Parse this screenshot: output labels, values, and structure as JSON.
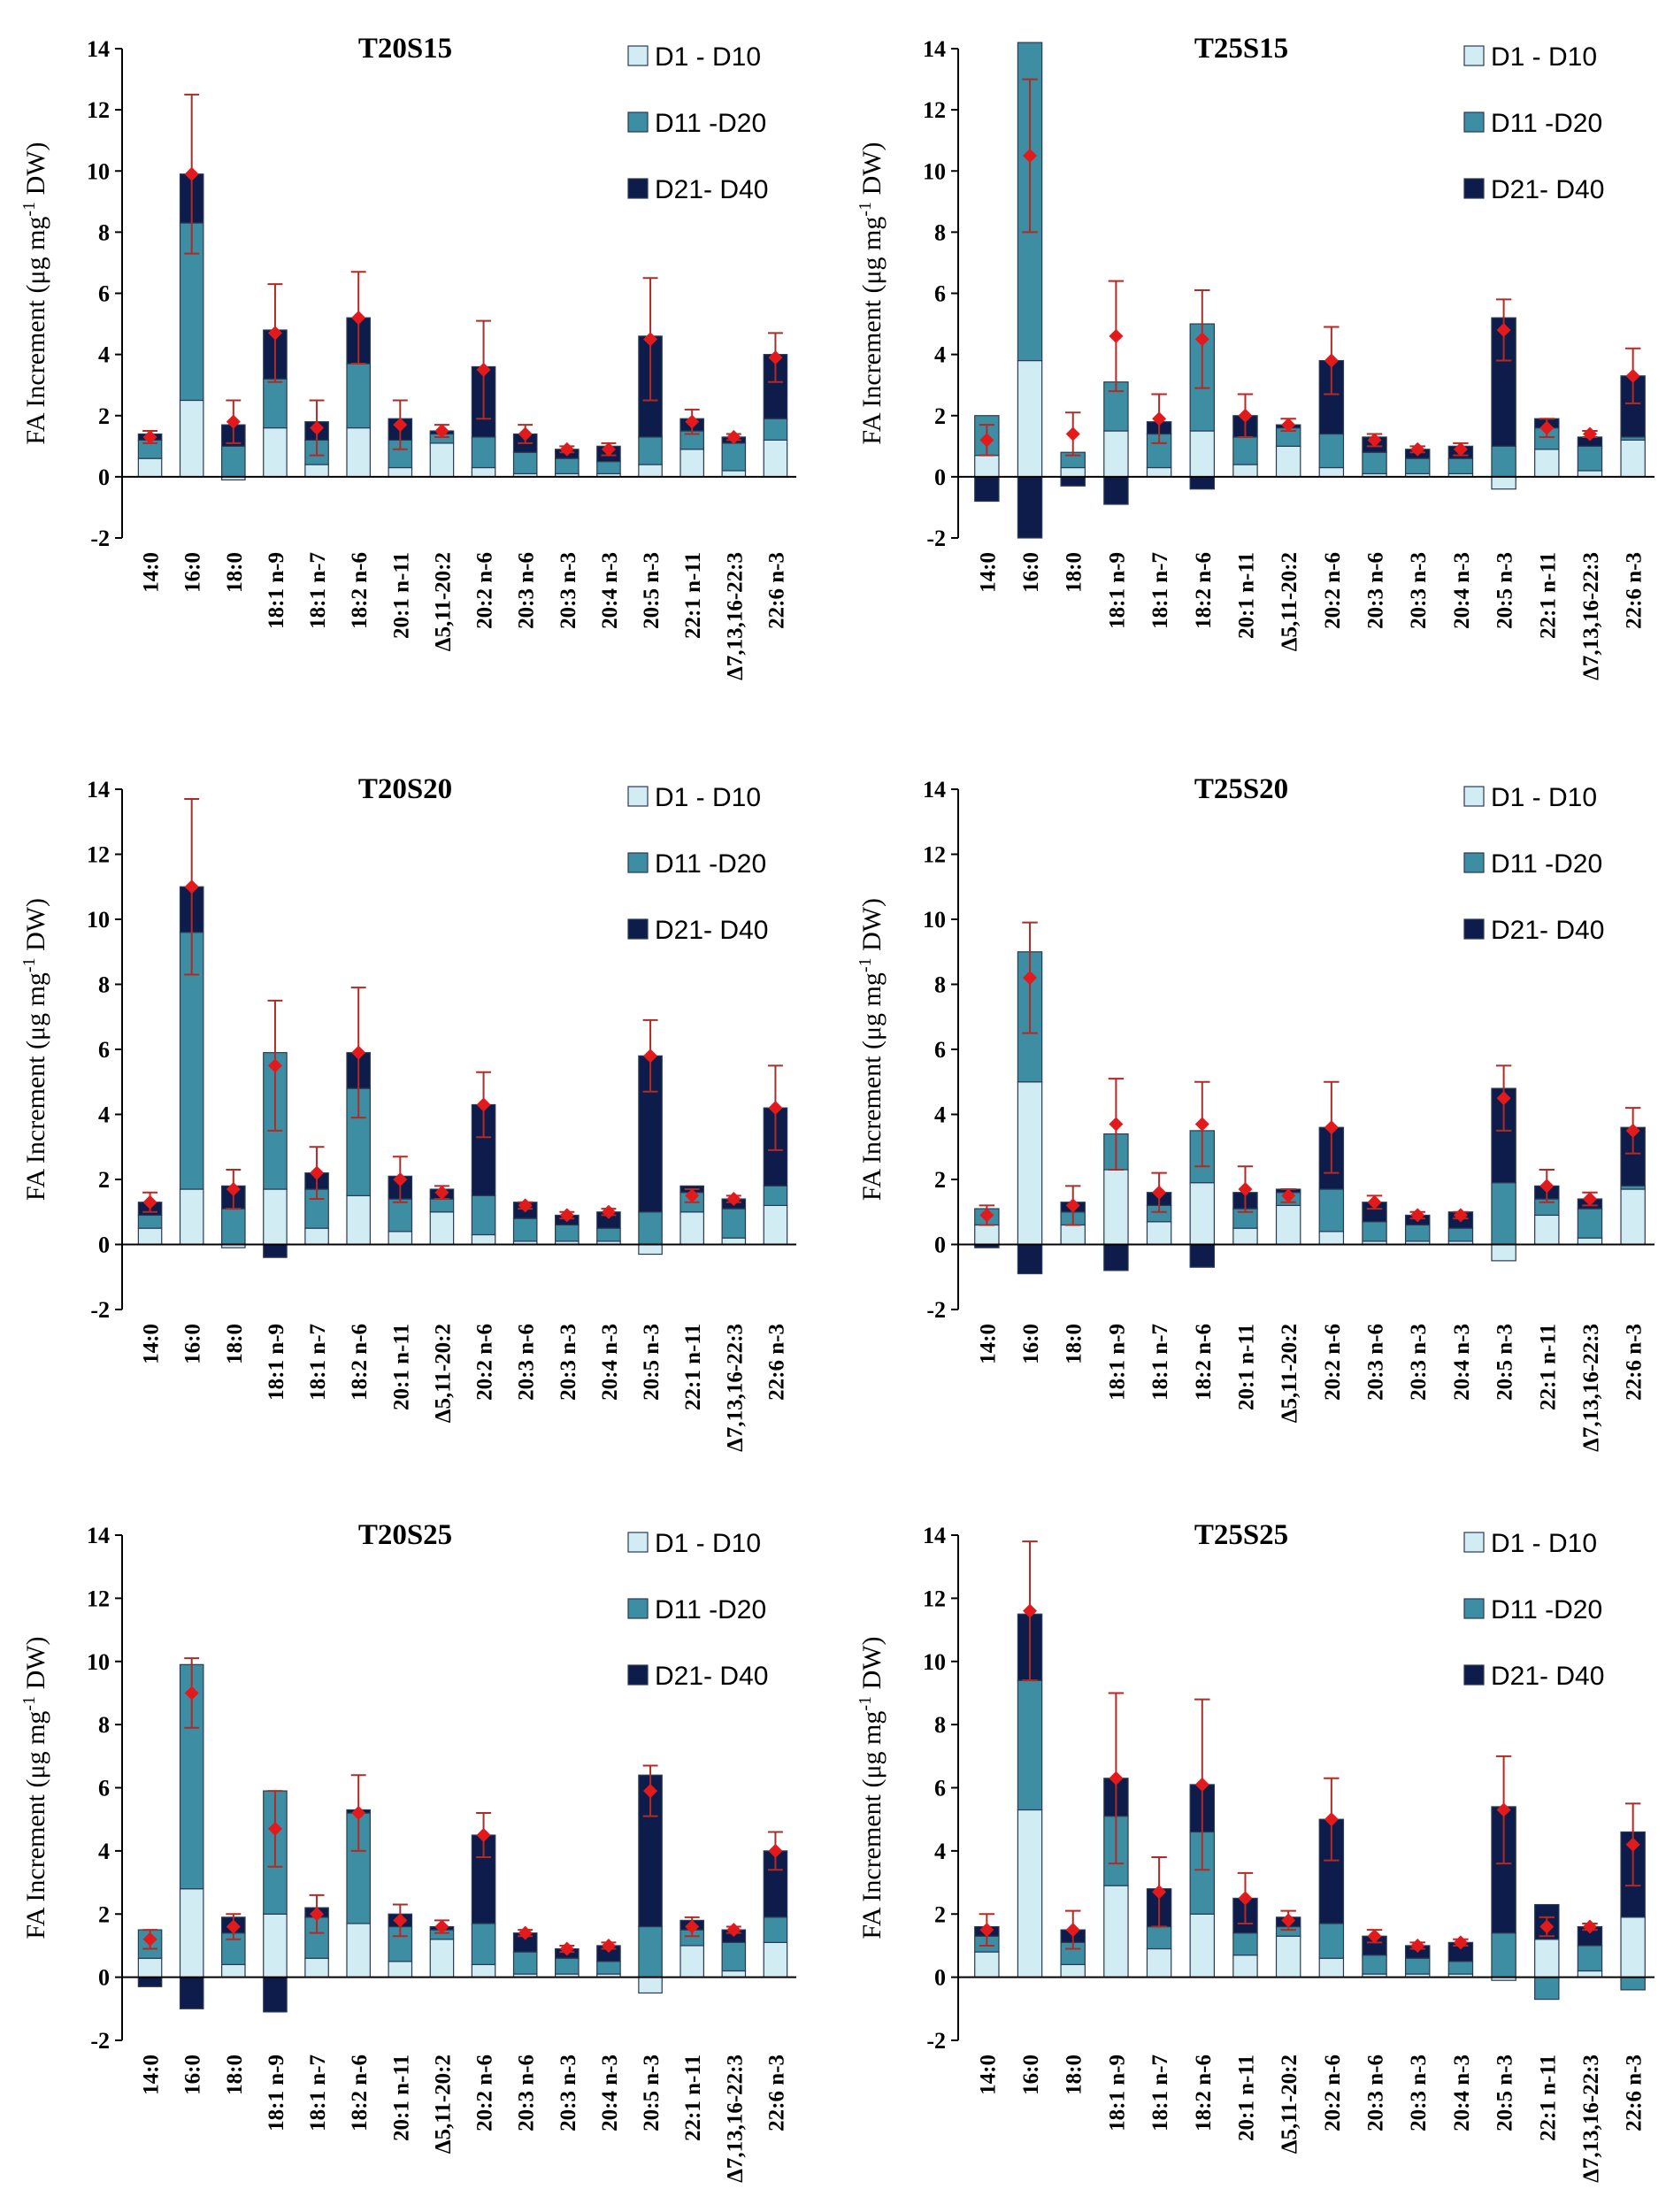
{
  "colors": {
    "d1": "#d2ecf4",
    "d11": "#3d8ea3",
    "d21": "#0d1c4a",
    "bar_stroke": "#2a3a55",
    "error": "#b22a24",
    "mean": "#e31a1c",
    "axis": "#000000"
  },
  "chart_data": [
    {
      "type": "bar",
      "stacked": true,
      "title": "T20S15",
      "ylabel": "FA Increment (μg mg⁻¹ DW)",
      "ylabel_parts": {
        "main": "FA Increment (μg mg",
        "sup": "-1",
        "tail": " DW)"
      },
      "ylim": [
        -2,
        14
      ],
      "yticks": [
        -2,
        0,
        2,
        4,
        6,
        8,
        10,
        12,
        14
      ],
      "categories": [
        "14:0",
        "16:0",
        "18:0",
        "18:1 n-9",
        "18:1 n-7",
        "18:2 n-6",
        "20:1 n-11",
        "Δ5,11-20:2",
        "20:2 n-6",
        "20:3 n-6",
        "20:3 n-3",
        "20:4 n-3",
        "20:5 n-3",
        "22:1 n-11",
        "Δ7,13,16-22:3",
        "22:6 n-3"
      ],
      "legend": [
        "D1 - D10",
        "D11 -D20",
        "D21- D40"
      ],
      "series": [
        {
          "name": "D1 - D10",
          "values": [
            0.6,
            2.5,
            -0.1,
            1.6,
            0.4,
            1.6,
            0.3,
            1.1,
            0.3,
            0.1,
            0.1,
            0.1,
            0.4,
            0.9,
            0.2,
            1.2
          ]
        },
        {
          "name": "D11 -D20",
          "values": [
            0.6,
            5.8,
            1.0,
            1.6,
            0.8,
            2.1,
            0.9,
            0.3,
            1.0,
            0.7,
            0.5,
            0.4,
            0.9,
            0.6,
            0.9,
            0.7
          ]
        },
        {
          "name": "D21- D40",
          "values": [
            0.2,
            1.6,
            0.7,
            1.6,
            0.6,
            1.5,
            0.7,
            0.1,
            2.3,
            0.6,
            0.3,
            0.5,
            3.3,
            0.4,
            0.2,
            2.1
          ]
        }
      ],
      "mean": [
        1.3,
        9.9,
        1.8,
        4.7,
        1.6,
        5.2,
        1.7,
        1.5,
        3.5,
        1.4,
        0.9,
        0.9,
        4.5,
        1.8,
        1.3,
        3.9
      ],
      "error": [
        0.2,
        2.6,
        0.7,
        1.6,
        0.9,
        1.5,
        0.8,
        0.2,
        1.6,
        0.3,
        0.1,
        0.2,
        2.0,
        0.4,
        0.1,
        0.8
      ]
    },
    {
      "type": "bar",
      "stacked": true,
      "title": "T25S15",
      "ylabel": "FA Increment (μg mg⁻¹ DW)",
      "ylabel_parts": {
        "main": "FA Increment (μg mg",
        "sup": "-1",
        "tail": " DW)"
      },
      "ylim": [
        -2,
        14
      ],
      "yticks": [
        -2,
        0,
        2,
        4,
        6,
        8,
        10,
        12,
        14
      ],
      "categories": [
        "14:0",
        "16:0",
        "18:0",
        "18:1 n-9",
        "18:1 n-7",
        "18:2 n-6",
        "20:1 n-11",
        "Δ5,11-20:2",
        "20:2 n-6",
        "20:3 n-6",
        "20:3 n-3",
        "20:4 n-3",
        "20:5 n-3",
        "22:1 n-11",
        "Δ7,13,16-22:3",
        "22:6 n-3"
      ],
      "legend": [
        "D1 - D10",
        "D11 -D20",
        "D21- D40"
      ],
      "series": [
        {
          "name": "D1 - D10",
          "values": [
            0.7,
            3.8,
            0.3,
            1.5,
            0.3,
            1.5,
            0.4,
            1.0,
            0.3,
            0.1,
            0.1,
            0.1,
            -0.4,
            0.9,
            0.2,
            1.2
          ]
        },
        {
          "name": "D11 -D20",
          "values": [
            1.3,
            10.4,
            0.5,
            1.6,
            1.1,
            3.5,
            0.9,
            0.6,
            1.1,
            0.7,
            0.5,
            0.5,
            1.0,
            0.7,
            0.8,
            0.1
          ]
        },
        {
          "name": "D21- D40",
          "values": [
            -0.8,
            -2.0,
            -0.3,
            -0.9,
            0.4,
            -0.4,
            0.7,
            0.1,
            2.4,
            0.5,
            0.3,
            0.4,
            4.2,
            0.3,
            0.3,
            2.0
          ]
        }
      ],
      "mean": [
        1.2,
        10.5,
        1.4,
        4.6,
        1.9,
        4.5,
        2.0,
        1.7,
        3.8,
        1.2,
        0.9,
        0.9,
        4.8,
        1.6,
        1.4,
        3.3
      ],
      "error": [
        0.5,
        2.5,
        0.7,
        1.8,
        0.8,
        1.6,
        0.7,
        0.2,
        1.1,
        0.2,
        0.1,
        0.2,
        1.0,
        0.3,
        0.1,
        0.9
      ]
    },
    {
      "type": "bar",
      "stacked": true,
      "title": "T20S20",
      "ylabel": "FA Increment (μg mg⁻¹ DW)",
      "ylabel_parts": {
        "main": "FA Increment (μg mg",
        "sup": "-1",
        "tail": " DW)"
      },
      "ylim": [
        -2,
        14
      ],
      "yticks": [
        -2,
        0,
        2,
        4,
        6,
        8,
        10,
        12,
        14
      ],
      "categories": [
        "14:0",
        "16:0",
        "18:0",
        "18:1 n-9",
        "18:1 n-7",
        "18:2 n-6",
        "20:1 n-11",
        "Δ5,11-20:2",
        "20:2 n-6",
        "20:3 n-6",
        "20:3 n-3",
        "20:4 n-3",
        "20:5 n-3",
        "22:1 n-11",
        "Δ7,13,16-22:3",
        "22:6 n-3"
      ],
      "legend": [
        "D1 - D10",
        "D11 -D20",
        "D21- D40"
      ],
      "series": [
        {
          "name": "D1 - D10",
          "values": [
            0.5,
            1.7,
            -0.1,
            1.7,
            0.5,
            1.5,
            0.4,
            1.0,
            0.3,
            0.1,
            0.1,
            0.1,
            -0.3,
            1.0,
            0.2,
            1.2
          ]
        },
        {
          "name": "D11 -D20",
          "values": [
            0.4,
            7.9,
            1.1,
            4.2,
            1.2,
            3.3,
            1.0,
            0.4,
            1.2,
            0.7,
            0.5,
            0.4,
            1.0,
            0.6,
            0.9,
            0.6
          ]
        },
        {
          "name": "D21- D40",
          "values": [
            0.4,
            1.4,
            0.7,
            -0.4,
            0.5,
            1.1,
            0.7,
            0.3,
            2.8,
            0.5,
            0.3,
            0.5,
            4.8,
            0.2,
            0.3,
            2.4
          ]
        }
      ],
      "mean": [
        1.3,
        11.0,
        1.7,
        5.5,
        2.2,
        5.9,
        2.0,
        1.6,
        4.3,
        1.2,
        0.9,
        1.0,
        5.8,
        1.5,
        1.4,
        4.2
      ],
      "error": [
        0.3,
        2.7,
        0.6,
        2.0,
        0.8,
        2.0,
        0.7,
        0.2,
        1.0,
        0.1,
        0.1,
        0.1,
        1.1,
        0.2,
        0.1,
        1.3
      ]
    },
    {
      "type": "bar",
      "stacked": true,
      "title": "T25S20",
      "ylabel": "FA Increment (μg mg⁻¹ DW)",
      "ylabel_parts": {
        "main": "FA Increment (μg mg",
        "sup": "-1",
        "tail": " DW)"
      },
      "ylim": [
        -2,
        14
      ],
      "yticks": [
        -2,
        0,
        2,
        4,
        6,
        8,
        10,
        12,
        14
      ],
      "categories": [
        "14:0",
        "16:0",
        "18:0",
        "18:1 n-9",
        "18:1 n-7",
        "18:2 n-6",
        "20:1 n-11",
        "Δ5,11-20:2",
        "20:2 n-6",
        "20:3 n-6",
        "20:3 n-3",
        "20:4 n-3",
        "20:5 n-3",
        "22:1 n-11",
        "Δ7,13,16-22:3",
        "22:6 n-3"
      ],
      "legend": [
        "D1 - D10",
        "D11 -D20",
        "D21- D40"
      ],
      "series": [
        {
          "name": "D1 - D10",
          "values": [
            0.6,
            5.0,
            0.6,
            2.3,
            0.7,
            1.9,
            0.5,
            1.2,
            0.4,
            0.1,
            0.1,
            0.1,
            -0.5,
            0.9,
            0.2,
            1.7
          ]
        },
        {
          "name": "D11 -D20",
          "values": [
            0.5,
            4.0,
            0.4,
            1.1,
            0.5,
            1.6,
            0.6,
            0.4,
            1.3,
            0.6,
            0.5,
            0.4,
            1.9,
            0.5,
            0.9,
            0.1
          ]
        },
        {
          "name": "D21- D40",
          "values": [
            -0.1,
            -0.9,
            0.3,
            -0.8,
            0.4,
            -0.7,
            0.5,
            0.1,
            1.9,
            0.6,
            0.3,
            0.5,
            2.9,
            0.4,
            0.3,
            1.8
          ]
        }
      ],
      "mean": [
        0.9,
        8.2,
        1.2,
        3.7,
        1.6,
        3.7,
        1.7,
        1.5,
        3.6,
        1.3,
        0.9,
        0.9,
        4.5,
        1.8,
        1.4,
        3.5
      ],
      "error": [
        0.3,
        1.7,
        0.6,
        1.4,
        0.6,
        1.3,
        0.7,
        0.2,
        1.4,
        0.2,
        0.1,
        0.1,
        1.0,
        0.5,
        0.2,
        0.7
      ]
    },
    {
      "type": "bar",
      "stacked": true,
      "title": "T20S25",
      "ylabel": "FA Increment (μg mg⁻¹ DW)",
      "ylabel_parts": {
        "main": "FA Increment (μg mg",
        "sup": "-1",
        "tail": " DW)"
      },
      "ylim": [
        -2,
        14
      ],
      "yticks": [
        -2,
        0,
        2,
        4,
        6,
        8,
        10,
        12,
        14
      ],
      "categories": [
        "14:0",
        "16:0",
        "18:0",
        "18:1 n-9",
        "18:1 n-7",
        "18:2 n-6",
        "20:1 n-11",
        "Δ5,11-20:2",
        "20:2 n-6",
        "20:3 n-6",
        "20:3 n-3",
        "20:4 n-3",
        "20:5 n-3",
        "22:1 n-11",
        "Δ7,13,16-22:3",
        "22:6 n-3"
      ],
      "legend": [
        "D1 - D10",
        "D11 -D20",
        "D21- D40"
      ],
      "series": [
        {
          "name": "D1 - D10",
          "values": [
            0.6,
            2.8,
            0.4,
            2.0,
            0.6,
            1.7,
            0.5,
            1.2,
            0.4,
            0.1,
            0.1,
            0.1,
            -0.5,
            1.0,
            0.2,
            1.1
          ]
        },
        {
          "name": "D11 -D20",
          "values": [
            0.9,
            7.1,
            1.0,
            3.9,
            1.3,
            3.5,
            1.1,
            0.3,
            1.3,
            0.7,
            0.5,
            0.4,
            1.6,
            0.5,
            0.9,
            0.8
          ]
        },
        {
          "name": "D21- D40",
          "values": [
            -0.3,
            -1.0,
            0.5,
            -1.1,
            0.3,
            0.1,
            0.4,
            0.1,
            2.8,
            0.6,
            0.3,
            0.5,
            4.8,
            0.3,
            0.4,
            2.1
          ]
        }
      ],
      "mean": [
        1.2,
        9.0,
        1.6,
        4.7,
        2.0,
        5.2,
        1.8,
        1.6,
        4.5,
        1.4,
        0.9,
        1.0,
        5.9,
        1.6,
        1.5,
        4.0
      ],
      "error": [
        0.3,
        1.1,
        0.4,
        1.2,
        0.6,
        1.2,
        0.5,
        0.2,
        0.7,
        0.1,
        0.1,
        0.1,
        0.8,
        0.3,
        0.1,
        0.6
      ]
    },
    {
      "type": "bar",
      "stacked": true,
      "title": "T25S25",
      "ylabel": "FA Increment (μg mg⁻¹ DW)",
      "ylabel_parts": {
        "main": "FA Increment (μg mg",
        "sup": "-1",
        "tail": " DW)"
      },
      "ylim": [
        -2,
        14
      ],
      "yticks": [
        -2,
        0,
        2,
        4,
        6,
        8,
        10,
        12,
        14
      ],
      "categories": [
        "14:0",
        "16:0",
        "18:0",
        "18:1 n-9",
        "18:1 n-7",
        "18:2 n-6",
        "20:1 n-11",
        "Δ5,11-20:2",
        "20:2 n-6",
        "20:3 n-6",
        "20:3 n-3",
        "20:4 n-3",
        "20:5 n-3",
        "22:1 n-11",
        "Δ7,13,16-22:3",
        "22:6 n-3"
      ],
      "legend": [
        "D1 - D10",
        "D11 -D20",
        "D21- D40"
      ],
      "series": [
        {
          "name": "D1 - D10",
          "values": [
            0.8,
            5.3,
            0.4,
            2.9,
            0.9,
            2.0,
            0.7,
            1.3,
            0.6,
            0.1,
            0.1,
            0.1,
            -0.1,
            1.2,
            0.2,
            1.9
          ]
        },
        {
          "name": "D11 -D20",
          "values": [
            0.5,
            4.1,
            0.7,
            2.2,
            0.7,
            2.6,
            0.7,
            0.3,
            1.1,
            0.6,
            0.5,
            0.4,
            1.4,
            -0.7,
            0.8,
            -0.4
          ]
        },
        {
          "name": "D21- D40",
          "values": [
            0.3,
            2.1,
            0.4,
            1.2,
            1.2,
            1.5,
            1.1,
            0.3,
            3.3,
            0.6,
            0.4,
            0.6,
            4.0,
            1.1,
            0.6,
            2.7
          ]
        }
      ],
      "mean": [
        1.5,
        11.6,
        1.5,
        6.3,
        2.7,
        6.1,
        2.5,
        1.8,
        5.0,
        1.3,
        1.0,
        1.1,
        5.3,
        1.6,
        1.6,
        4.2
      ],
      "error": [
        0.5,
        2.2,
        0.6,
        2.7,
        1.1,
        2.7,
        0.8,
        0.3,
        1.3,
        0.2,
        0.1,
        0.1,
        1.7,
        0.3,
        0.1,
        1.3
      ]
    }
  ]
}
